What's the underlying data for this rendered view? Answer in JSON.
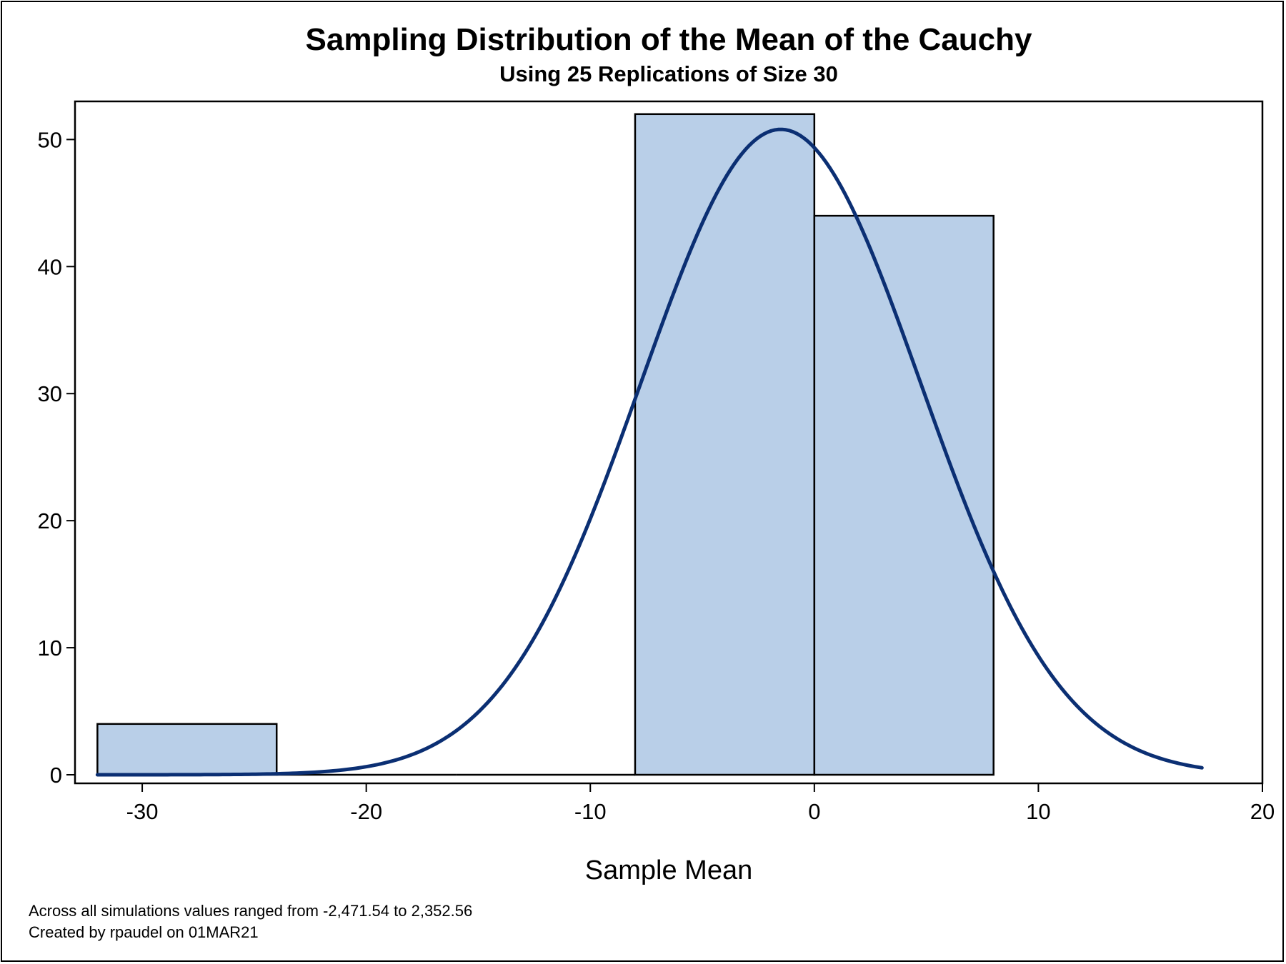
{
  "chart_data": {
    "type": "bar",
    "title": "Sampling Distribution of the Mean of the Cauchy",
    "subtitle": "Using 25 Replications of Size 30",
    "xlabel": "Sample Mean",
    "ylabel": "",
    "xlim": [
      -33,
      20
    ],
    "ylim": [
      0,
      53
    ],
    "x_ticks": [
      -30,
      -20,
      -10,
      0,
      10,
      20
    ],
    "y_ticks": [
      0,
      10,
      20,
      30,
      40,
      50
    ],
    "bins": [
      {
        "x0": -32,
        "x1": -24,
        "value": 4
      },
      {
        "x0": -24,
        "x1": -16,
        "value": 0
      },
      {
        "x0": -16,
        "x1": -8,
        "value": 0
      },
      {
        "x0": -8,
        "x1": 0,
        "value": 52
      },
      {
        "x0": 0,
        "x1": 8,
        "value": 44
      }
    ],
    "curve": {
      "type": "normal",
      "mean": -1.5,
      "std": 6.25,
      "peak": 50.8,
      "x_range": [
        -32,
        17.3
      ]
    },
    "footnotes": [
      "Across all simulations values ranged from -2,471.54 to 2,352.56",
      "Created by rpaudel on 01MAR21"
    ],
    "grid": false,
    "legend": "none",
    "colors": {
      "bar_fill": "#b9cfe8",
      "bar_stroke": "#000000",
      "curve": "#0b2f73",
      "axis": "#000000"
    }
  }
}
